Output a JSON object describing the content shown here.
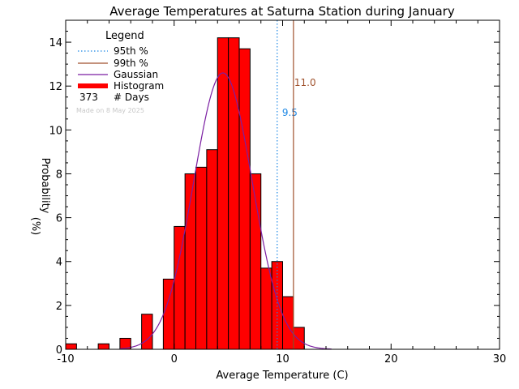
{
  "chart_data": {
    "type": "bar",
    "title": "Average Temperatures at Saturna Station during January",
    "xlabel": "Average Temperature (C)",
    "ylabel_line1": "Probability",
    "ylabel_line2": "(%)",
    "xlim": [
      -10,
      30
    ],
    "ylim": [
      0,
      15
    ],
    "x_ticks": [
      -10,
      0,
      10,
      20,
      30
    ],
    "y_ticks": [
      0,
      2,
      4,
      6,
      8,
      10,
      12,
      14
    ],
    "grid": false,
    "bin_width": 1,
    "histogram": {
      "bin_starts": [
        -10,
        -7,
        -5,
        -3,
        -1,
        0,
        1,
        2,
        3,
        4,
        5,
        6,
        7,
        8,
        9,
        10,
        11
      ],
      "values": [
        0.25,
        0.25,
        0.5,
        1.6,
        3.2,
        5.6,
        8.0,
        8.3,
        9.1,
        14.2,
        14.2,
        13.7,
        8.0,
        3.7,
        4.0,
        2.4,
        1.0
      ]
    },
    "gaussian": {
      "mean": 4.5,
      "peak": 12.6,
      "sigma": 2.7,
      "x_range": [
        -5,
        14.5
      ]
    },
    "percentiles": [
      {
        "label": "95th %",
        "value": 9.5,
        "value_text": "9.5",
        "color": "#1e88e5",
        "style": "dotted"
      },
      {
        "label": "99th %",
        "value": 11.0,
        "value_text": "11.0",
        "color": "#a0522d",
        "style": "solid"
      }
    ],
    "legend": {
      "title": "Legend",
      "placement": "top-left",
      "items": [
        {
          "label": "95th %",
          "color": "#1e88e5",
          "kind": "dotted"
        },
        {
          "label": "99th %",
          "color": "#a0522d",
          "kind": "solid"
        },
        {
          "label": "Gaussian",
          "color": "#7b1fa2",
          "kind": "solid"
        },
        {
          "label": "Histogram",
          "color": "#ff0000",
          "kind": "thick"
        }
      ],
      "days_count": "373",
      "days_label": "# Days",
      "made_on": "Made on 8 May 2025"
    },
    "colors": {
      "histogram_fill": "#ff0000",
      "histogram_edge": "#000000",
      "gaussian": "#7b1fa2",
      "p95": "#1e88e5",
      "p99": "#a0522d",
      "made_on_text": "#c8c8c8"
    }
  }
}
